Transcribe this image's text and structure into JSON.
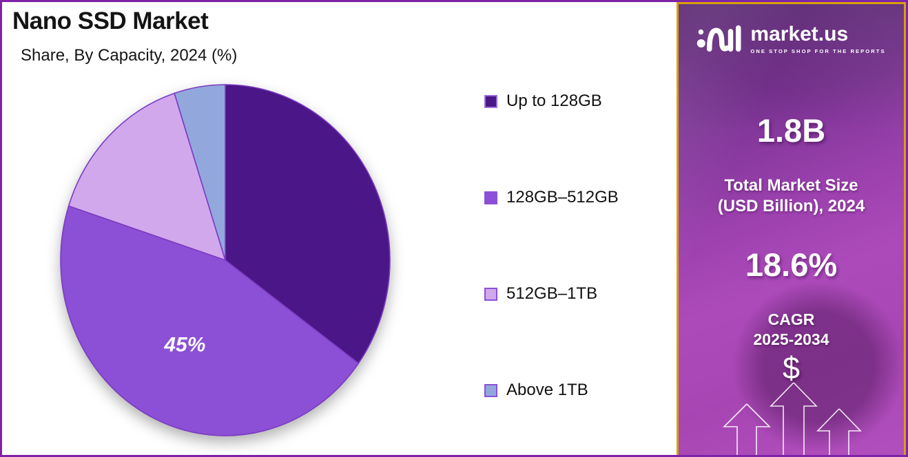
{
  "header": {
    "title": "Nano SSD Market",
    "subtitle": "Share, By Capacity, 2024 (%)"
  },
  "chart_data": {
    "type": "pie",
    "title": "Nano SSD Market",
    "subtitle": "Share, By Capacity, 2024 (%)",
    "unit": "%",
    "start_angle_deg": 0,
    "direction": "clockwise",
    "legend_position": "right",
    "stroke_color": "#7C3AC2",
    "slices": [
      {
        "label": "Up to 128GB",
        "value": 35,
        "color": "#4B1687",
        "swatch_border": "#9D6FDC",
        "data_label": ""
      },
      {
        "label": "128GB–512GB",
        "value": 45,
        "color": "#8B50D5",
        "swatch_border": "#8B50D5",
        "data_label": "45%"
      },
      {
        "label": "512GB–1TB",
        "value": 15,
        "color": "#D1A8EC",
        "swatch_border": "#8B50D5",
        "data_label": ""
      },
      {
        "label": "Above 1TB",
        "value": 5,
        "color": "#92A8DC",
        "swatch_border": "#8B50D5",
        "data_label": ""
      }
    ]
  },
  "sidebar": {
    "brand": "market.us",
    "tagline": "ONE STOP SHOP FOR THE REPORTS",
    "market_size": {
      "value": "1.8B",
      "label_line1": "Total Market Size",
      "label_line2": "(USD Billion), 2024"
    },
    "cagr": {
      "value": "18.6%",
      "label_line1": "CAGR",
      "label_line2": "2025-2034"
    },
    "dollar_symbol": "$",
    "colors": {
      "border_gold": "#D9A00D",
      "background_purple": "#A746B3"
    }
  },
  "frame": {
    "border_color": "#7E22A8",
    "background": "#FFFFFF"
  }
}
